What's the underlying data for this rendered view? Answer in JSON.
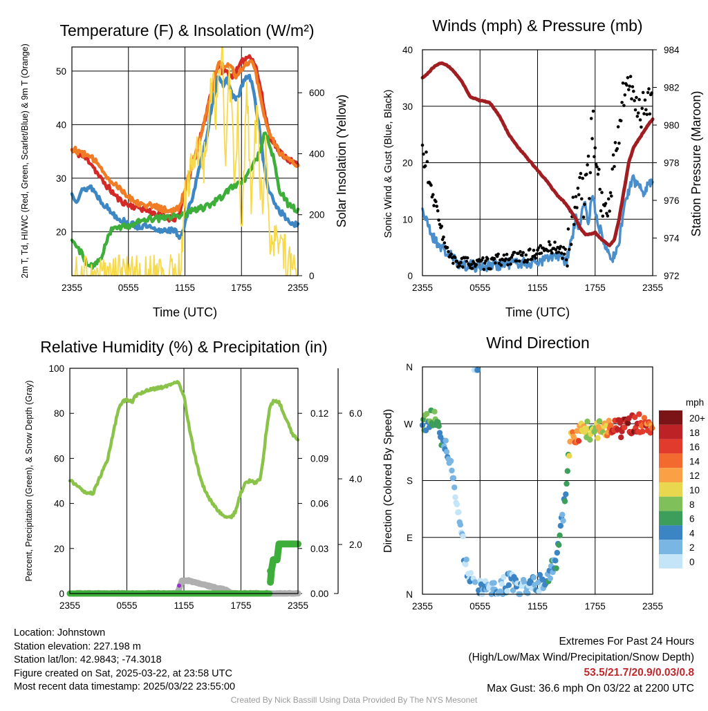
{
  "chart_data": [
    {
      "type": "line",
      "title": "Temperature (F) & Insolation (W/m²)",
      "ylabel": "2m T, Td, HI/WC (Red, Green, Scarlet/Blue) & 9m T (Orange)",
      "ylabel_right": "Solar Insolation (Yellow)",
      "xlabel": "Time (UTC)",
      "x_ticks": [
        "2355",
        "0555",
        "1155",
        "1755",
        "2355"
      ],
      "y_ticks": [
        20,
        30,
        40,
        50
      ],
      "y_ticks_right": [
        0,
        200,
        400,
        600
      ],
      "ylim": [
        11.8,
        54.5
      ],
      "ylim_right": [
        0,
        750
      ],
      "xlim": [
        0,
        24
      ],
      "series": [
        {
          "name": "2m T (Red)",
          "color": "#d42a27",
          "axis": "left",
          "x": [
            0,
            1,
            2,
            3,
            4,
            5,
            6,
            7,
            8,
            9,
            10,
            11,
            11.5,
            12,
            13,
            14,
            14.5,
            15,
            15.5,
            16,
            16.5,
            17,
            17.5,
            18,
            18.5,
            19,
            19.5,
            20,
            20.5,
            21,
            22,
            23,
            24
          ],
          "values": [
            35.3,
            34.2,
            33.0,
            30.0,
            28.0,
            26.0,
            25.0,
            24.6,
            24.0,
            23.3,
            22.6,
            22.5,
            23.8,
            27.5,
            33.5,
            40.0,
            44.0,
            48.0,
            51.0,
            50.0,
            49.8,
            49.0,
            50.0,
            51.5,
            52.5,
            53.0,
            51.0,
            47.0,
            42.0,
            38.0,
            35.0,
            33.5,
            32.5
          ]
        },
        {
          "name": "9m T (Orange)",
          "color": "#f07d26",
          "axis": "left",
          "x": [
            0,
            1,
            2,
            3,
            4,
            5,
            6,
            7,
            8,
            9,
            10,
            11,
            11.5,
            12,
            13,
            14,
            14.5,
            15,
            15.5,
            16,
            16.5,
            17,
            17.5,
            18,
            18.5,
            19,
            19.5,
            20,
            21,
            22,
            23,
            24
          ],
          "values": [
            35.5,
            34.8,
            33.8,
            32.5,
            29.5,
            28.5,
            26.5,
            25.5,
            25.0,
            24.6,
            24.0,
            23.8,
            25.0,
            28.0,
            34.0,
            40.0,
            44.0,
            47.0,
            51.5,
            51.0,
            51.5,
            50.5,
            49.0,
            50.5,
            51.5,
            52.0,
            50.0,
            45.0,
            38.0,
            35.0,
            33.5,
            32.0
          ]
        },
        {
          "name": "HI/WC (Blue)",
          "color": "#3d87c4",
          "axis": "left",
          "x": [
            0,
            0.5,
            1,
            2,
            3,
            4,
            5,
            6,
            7,
            8,
            9,
            10,
            11,
            11.5,
            12,
            13,
            14,
            14.5,
            15,
            15.5,
            16,
            16.5,
            17,
            17.5,
            18,
            18.5,
            19,
            19.5,
            20,
            20.5,
            21,
            22,
            23,
            24
          ],
          "values": [
            27.0,
            26.0,
            27.5,
            28.5,
            26.0,
            24.0,
            22.5,
            21.5,
            21.0,
            21.0,
            20.0,
            20.5,
            20.0,
            19.0,
            21.5,
            28.0,
            35.0,
            40.0,
            45.0,
            48.5,
            47.5,
            48.5,
            45.5,
            44.5,
            47.0,
            49.0,
            48.5,
            44.0,
            38.0,
            31.0,
            27.0,
            24.0,
            22.0,
            21.0
          ]
        },
        {
          "name": "2m Td (Green)",
          "color": "#3dae3a",
          "axis": "left",
          "x": [
            0,
            0.5,
            1,
            1.5,
            2,
            2.5,
            3,
            3.5,
            4,
            5,
            6,
            7,
            8,
            9,
            10,
            11,
            12,
            13,
            14,
            15,
            16,
            16.5,
            17,
            18,
            19,
            20,
            20.5,
            21,
            21.5,
            22,
            23,
            24
          ],
          "values": [
            18.5,
            17.5,
            16.0,
            14.5,
            13.5,
            14.0,
            14.5,
            17.5,
            20.0,
            21.0,
            21.2,
            21.8,
            22.3,
            22.5,
            22.5,
            23.0,
            23.3,
            24.0,
            24.5,
            25.5,
            26.5,
            27.5,
            28.5,
            29.0,
            31.5,
            35.0,
            38.5,
            36.5,
            33.0,
            28.0,
            25.0,
            24.0
          ]
        },
        {
          "name": "Solar Insolation (Yellow)",
          "color": "#f7d94c",
          "axis": "right",
          "x": [
            0,
            11,
            11.5,
            12,
            12.5,
            13,
            13.5,
            14,
            14.3,
            14.6,
            15,
            15.3,
            15.6,
            16,
            16.3,
            16.6,
            17,
            17.3,
            17.6,
            18,
            18.3,
            18.6,
            19,
            19.3,
            19.6,
            20,
            20.3,
            20.6,
            21,
            21.5,
            22,
            22.5,
            23,
            24
          ],
          "values": [
            0,
            0,
            10,
            250,
            330,
            380,
            400,
            360,
            460,
            560,
            640,
            520,
            650,
            740,
            380,
            620,
            610,
            240,
            560,
            120,
            400,
            600,
            250,
            350,
            560,
            300,
            220,
            420,
            100,
            140,
            60,
            90,
            30,
            0
          ]
        }
      ]
    },
    {
      "type": "line",
      "title": "Winds (mph) & Pressure (mb)",
      "ylabel": "Sonic Wind & Gust (Blue, Black)",
      "ylabel_right": "Station Pressure (Maroon)",
      "xlabel": "Time (UTC)",
      "x_ticks": [
        "2355",
        "0555",
        "1155",
        "1755",
        "2355"
      ],
      "y_ticks": [
        0,
        10,
        20,
        30,
        40
      ],
      "y_ticks_right": [
        972,
        974,
        976,
        978,
        980,
        982,
        984
      ],
      "ylim": [
        0,
        40
      ],
      "ylim_right": [
        972,
        984
      ],
      "xlim": [
        0,
        24
      ],
      "series": [
        {
          "name": "Sonic Wind (Blue)",
          "color": "#4a8fcb",
          "axis": "left",
          "x": [
            0,
            0.3,
            0.6,
            1,
            1.5,
            2,
            2.5,
            3,
            3.5,
            4,
            5,
            6,
            7,
            8,
            9,
            10,
            11,
            12,
            13,
            14,
            15,
            15.5,
            16,
            16.3,
            16.6,
            17,
            17.3,
            17.5,
            17.8,
            18,
            18.3,
            18.6,
            19,
            19.5,
            20,
            20.5,
            21,
            21.5,
            22,
            22.5,
            23,
            23.5,
            24
          ],
          "values": [
            12,
            10,
            9,
            7,
            6,
            5,
            4,
            3.5,
            2.5,
            2,
            1.8,
            1.6,
            1.8,
            2.0,
            2.2,
            2.3,
            2.2,
            2.5,
            3.0,
            3.5,
            2.5,
            6.0,
            10.0,
            8.0,
            11.0,
            13.0,
            9.0,
            12.0,
            15.0,
            11.0,
            9.0,
            8.0,
            6.0,
            4.0,
            3.0,
            6.0,
            12.0,
            15.0,
            17.0,
            16.0,
            15.0,
            16.0,
            17.0
          ]
        },
        {
          "name": "Gust (Black)",
          "color": "#000000",
          "axis": "left",
          "x": [
            0,
            0.2,
            0.4,
            0.6,
            0.9,
            1.2,
            1.5,
            1.8,
            2.1,
            2.4,
            2.8,
            3.2,
            4,
            5,
            6,
            7,
            8,
            9,
            10,
            11,
            12,
            13,
            14,
            15,
            15.4,
            15.8,
            16.2,
            16.5,
            16.8,
            17.1,
            17.4,
            17.6,
            17.8,
            18,
            18.3,
            18.6,
            19,
            19.3,
            19.6,
            20,
            20.4,
            20.8,
            21.2,
            21.6,
            22,
            22.4,
            22.8,
            23.2,
            23.6,
            24
          ],
          "values": [
            23,
            19,
            22,
            17,
            15,
            13,
            12,
            10,
            7,
            5,
            3.5,
            2.5,
            2.3,
            2.3,
            2.0,
            2.2,
            2.8,
            3.0,
            3.2,
            3.5,
            4.0,
            5.0,
            5.0,
            3.5,
            8.0,
            12.0,
            15.0,
            16.0,
            13.0,
            19.0,
            17.0,
            25.0,
            27.0,
            22.0,
            18.0,
            14.0,
            12.0,
            10.0,
            15.0,
            20.0,
            25.0,
            30.0,
            35.0,
            32.0,
            33.0,
            30.0,
            29.0,
            31.0,
            32.0,
            30.0
          ]
        },
        {
          "name": "Station Pressure (Maroon)",
          "color": "#a01e22",
          "axis": "right",
          "x": [
            0,
            0.5,
            1,
            1.5,
            2,
            2.5,
            3,
            3.5,
            4,
            5,
            6,
            7,
            8,
            9,
            10,
            11,
            12,
            13,
            14,
            15,
            15.5,
            16,
            16.5,
            17,
            17.5,
            18,
            18.5,
            19,
            19.5,
            20,
            20.5,
            21,
            21.5,
            22,
            22.5,
            23,
            23.5,
            24
          ],
          "values": [
            982.5,
            982.7,
            983.0,
            983.2,
            983.3,
            983.2,
            983.0,
            982.7,
            982.4,
            981.5,
            981.3,
            981.2,
            980.5,
            979.5,
            978.8,
            978.2,
            977.6,
            977.0,
            976.3,
            975.8,
            975.4,
            975.0,
            974.5,
            974.2,
            974.2,
            974.3,
            974.0,
            973.8,
            973.6,
            973.9,
            975.0,
            976.5,
            978.0,
            978.8,
            979.2,
            979.6,
            980.0,
            980.3
          ]
        }
      ]
    },
    {
      "type": "line",
      "title": "Relative Humidity (%) & Precipitation (in)",
      "ylabel": "Percent, Precipitation (Green), & Snow Depth (Gray)",
      "x_ticks": [
        "2355",
        "0555",
        "1155",
        "1755",
        "2355"
      ],
      "y_ticks": [
        0,
        20,
        40,
        60,
        80,
        100
      ],
      "y_ticks_right": [
        "0.00",
        "0.03",
        "0.06",
        "0.09",
        "0.12"
      ],
      "y_ticks_far_right": [
        "2.0",
        "4.0",
        "6.0"
      ],
      "ylim": [
        0,
        100
      ],
      "xlim": [
        0,
        24
      ],
      "series": [
        {
          "name": "Relative Humidity",
          "color": "#8bc34a",
          "axis": "left",
          "x": [
            0,
            0.5,
            1,
            1.5,
            2,
            2.5,
            3,
            3.5,
            4,
            4.5,
            5,
            5.5,
            6,
            6.5,
            7,
            8,
            9,
            10,
            11,
            11.5,
            12,
            12.5,
            13,
            13.5,
            14,
            14.5,
            15,
            15.5,
            16,
            16.5,
            17,
            17.5,
            18,
            18.5,
            19,
            19.5,
            20,
            20.3,
            20.6,
            21,
            21.5,
            22,
            22.5,
            23,
            23.5,
            24
          ],
          "values": [
            50,
            49,
            47,
            45,
            44,
            45,
            50,
            55,
            60,
            70,
            80,
            85,
            86,
            85,
            88,
            90,
            91,
            92,
            94,
            93,
            88,
            75,
            64,
            55,
            48,
            43,
            40,
            37,
            35,
            33.5,
            34,
            37,
            45,
            49,
            50,
            49,
            51,
            58,
            70,
            82,
            86,
            85,
            80,
            75,
            70,
            68
          ]
        },
        {
          "name": "Precipitation (Green)",
          "color": "#3dae3a",
          "axis": "right",
          "x": [
            0,
            21,
            21.2,
            21.4,
            21.8,
            22,
            23,
            24
          ],
          "values": [
            0,
            0,
            10,
            15,
            15,
            22,
            22,
            22
          ]
        },
        {
          "name": "Snow Depth (Gray)",
          "color": "#b0b0b0",
          "axis": "far-right",
          "x": [
            0,
            11.3,
            11.8,
            12.5,
            13.5,
            14.5,
            15.5,
            16.5,
            17,
            24
          ],
          "values": [
            0,
            0,
            5.5,
            5.8,
            4.5,
            3.5,
            2.5,
            1.5,
            0,
            0
          ]
        }
      ]
    },
    {
      "type": "scatter",
      "title": "Wind Direction",
      "ylabel": "Direction (Colored By Speed)",
      "x_ticks": [
        "2355",
        "0555",
        "1155",
        "1755",
        "2355"
      ],
      "y_ticks": [
        "N",
        "E",
        "S",
        "W",
        "N"
      ],
      "xlim": [
        0,
        24
      ],
      "ylim": [
        0,
        360
      ],
      "legend_title": "mph",
      "legend_labels": [
        "20+",
        "18",
        "16",
        "14",
        "12",
        "10",
        "8",
        "6",
        "4",
        "2",
        "0"
      ],
      "legend_colors": [
        "#7b1416",
        "#bd2226",
        "#e03b2d",
        "#f26a2e",
        "#f9a144",
        "#e9d84f",
        "#7fc05a",
        "#3d9e5b",
        "#3b85c4",
        "#7ab6e3",
        "#c4e4f7"
      ]
    }
  ],
  "footer": {
    "location": "Location: Johnstown",
    "elevation": "Station elevation: 227.198 m",
    "latlon": "Station lat/lon: 42.9843; -74.3018",
    "created": "Figure created on Sat, 2025-03-22, at 23:58 UTC",
    "recent": "Most recent data timestamp: 2025/03/22 23:55:00",
    "extremes_title": "Extremes For Past 24 Hours",
    "extremes_sub": "(High/Low/Max Wind/Precipitation/Snow Depth)",
    "extremes_values": "53.5/21.7/20.9/0.03/0.8",
    "max_gust": "Max Gust: 36.6 mph On 03/22 at 2200 UTC",
    "credit": "Created By Nick Bassill Using Data Provided By The NYS Mesonet"
  }
}
